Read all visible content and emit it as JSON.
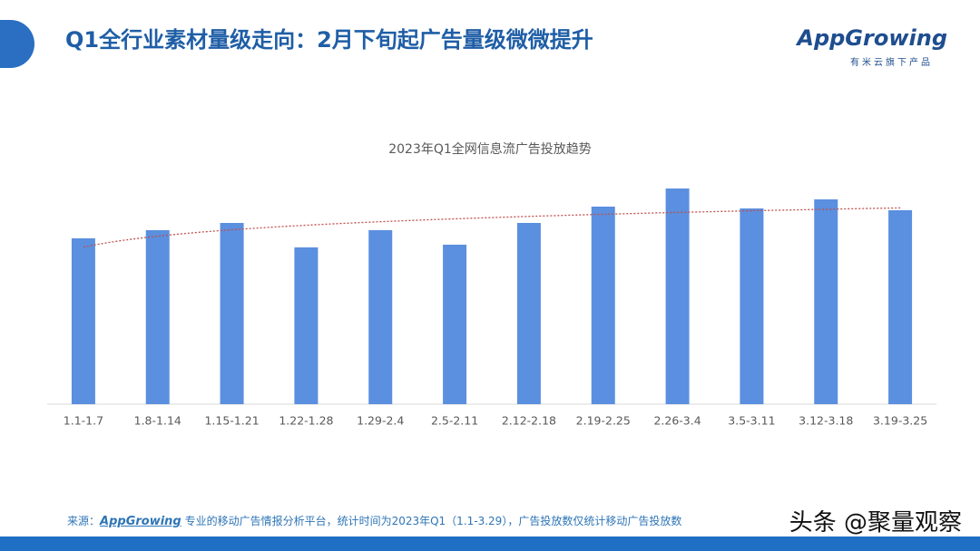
{
  "header": {
    "title": "Q1全行业素材量级走向：2月下旬起广告量级微微提升"
  },
  "logo": {
    "name": "AppGrowing",
    "tagline": "有米云旗下产品"
  },
  "chart_data": {
    "type": "bar",
    "title": "2023年Q1全网信息流广告投放趋势",
    "categories": [
      "1.1-1.7",
      "1.8-1.14",
      "1.15-1.21",
      "1.22-1.28",
      "1.29-2.4",
      "2.5-2.11",
      "2.12-2.18",
      "2.19-2.25",
      "2.26-3.4",
      "3.5-3.11",
      "3.12-3.18",
      "3.19-3.25"
    ],
    "values": [
      183,
      192,
      200,
      173,
      192,
      176,
      200,
      218,
      238,
      216,
      226,
      214
    ],
    "color": "#5b8fdf",
    "trendline": "logarithmic",
    "trend_color": "#c0504d"
  },
  "footer": {
    "source_label": "来源：",
    "source_brand": "AppGrowing",
    "source_text": "专业的移动广告情报分析平台，统计时间为2023年Q1（1.1-3.29），广告投放数仅统计移动广告投放数"
  },
  "watermark": "头条 @聚量观察"
}
